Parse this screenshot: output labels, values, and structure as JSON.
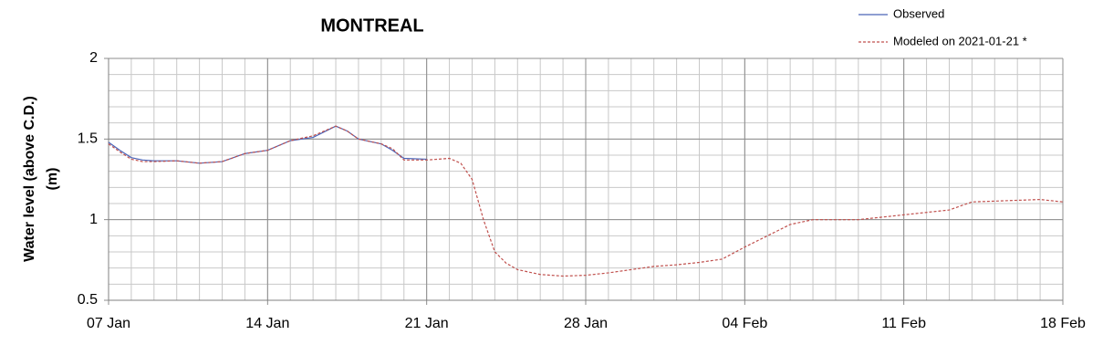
{
  "chart_data": {
    "type": "line",
    "title": "MONTREAL",
    "y_label": [
      "Water level (above C.D.)",
      "(m)"
    ],
    "xlim": [
      0,
      42
    ],
    "xticks": [
      {
        "value": 0,
        "label": "07 Jan"
      },
      {
        "value": 7,
        "label": "14 Jan"
      },
      {
        "value": 14,
        "label": "21 Jan"
      },
      {
        "value": 21,
        "label": "28 Jan"
      },
      {
        "value": 28,
        "label": "04 Feb"
      },
      {
        "value": 35,
        "label": "11 Feb"
      },
      {
        "value": 42,
        "label": "18 Feb"
      }
    ],
    "ylim": [
      0.5,
      2
    ],
    "yticks": [
      0.5,
      1,
      1.5,
      2
    ],
    "grid": true,
    "x_minor_step": 1,
    "y_minor_step": 0.1,
    "legend": "top-right",
    "series": [
      {
        "name": "Observed",
        "color": "#4a64b8",
        "dashed": false,
        "x": [
          0,
          0.5,
          1,
          1.5,
          2,
          3,
          4,
          5,
          6,
          7,
          8,
          9,
          10,
          10.5,
          11,
          12,
          12.5,
          13,
          14
        ],
        "values": [
          1.48,
          1.43,
          1.385,
          1.37,
          1.365,
          1.365,
          1.35,
          1.36,
          1.41,
          1.43,
          1.49,
          1.51,
          1.58,
          1.55,
          1.5,
          1.47,
          1.43,
          1.38,
          1.375
        ]
      },
      {
        "name": "Modeled on 2021-01-21 *",
        "color": "#c0504d",
        "dashed": true,
        "x": [
          0,
          0.5,
          1,
          1.5,
          2,
          3,
          4,
          5,
          6,
          7,
          8,
          9,
          10,
          10.5,
          11,
          12,
          12.5,
          13,
          14,
          14.5,
          15,
          15.5,
          16,
          16.5,
          17,
          17.5,
          18,
          19,
          20,
          21,
          22,
          23,
          24,
          25,
          26,
          27,
          28,
          29,
          30,
          31,
          32,
          33,
          34,
          35,
          36,
          37,
          38,
          39,
          40,
          41,
          42
        ],
        "values": [
          1.47,
          1.42,
          1.375,
          1.36,
          1.36,
          1.365,
          1.35,
          1.36,
          1.41,
          1.43,
          1.49,
          1.52,
          1.58,
          1.55,
          1.5,
          1.47,
          1.44,
          1.37,
          1.37,
          1.375,
          1.38,
          1.35,
          1.25,
          1.0,
          0.8,
          0.73,
          0.69,
          0.66,
          0.65,
          0.655,
          0.67,
          0.69,
          0.71,
          0.72,
          0.735,
          0.755,
          0.83,
          0.9,
          0.97,
          1.0,
          1.0,
          1.0,
          1.015,
          1.03,
          1.045,
          1.06,
          1.11,
          1.115,
          1.12,
          1.125,
          1.11
        ]
      }
    ]
  }
}
